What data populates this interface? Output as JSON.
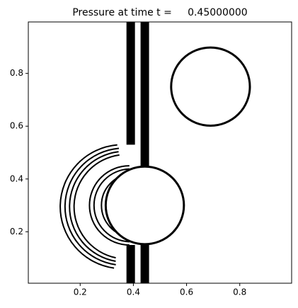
{
  "chart_data": {
    "type": "contour",
    "title": "Pressure at time t =     0.45000000",
    "xlim": [
      0.005,
      0.995
    ],
    "ylim": [
      0.005,
      0.995
    ],
    "xticks": [
      0.2,
      0.4,
      0.6,
      0.8
    ],
    "yticks": [
      0.2,
      0.4,
      0.6,
      0.8
    ],
    "color": "#000000",
    "circles": [
      {
        "cx": 0.69,
        "cy": 0.75,
        "r": 0.148
      },
      {
        "cx": 0.443,
        "cy": 0.3,
        "r": 0.147
      }
    ],
    "bands": [
      {
        "x": 0.39,
        "y0": 0.53,
        "y1": 0.995
      },
      {
        "x": 0.39,
        "y0": 0.005,
        "y1": 0.15
      },
      {
        "x": 0.443,
        "y0": 0.45,
        "y1": 0.995
      },
      {
        "x": 0.443,
        "y0": 0.005,
        "y1": 0.15
      }
    ],
    "arcs": [
      {
        "cx": 0.36,
        "cy": 0.295,
        "r": 0.235,
        "a0": 95,
        "a1": 262
      },
      {
        "cx": 0.365,
        "cy": 0.295,
        "r": 0.222,
        "a0": 95,
        "a1": 262
      },
      {
        "cx": 0.37,
        "cy": 0.295,
        "r": 0.21,
        "a0": 97,
        "a1": 260
      },
      {
        "cx": 0.375,
        "cy": 0.295,
        "r": 0.198,
        "a0": 98,
        "a1": 258
      },
      {
        "cx": 0.385,
        "cy": 0.3,
        "r": 0.15,
        "a0": 90,
        "a1": 270
      },
      {
        "cx": 0.39,
        "cy": 0.3,
        "r": 0.138,
        "a0": 92,
        "a1": 268
      },
      {
        "cx": 0.4,
        "cy": 0.3,
        "r": 0.12,
        "a0": 95,
        "a1": 265
      },
      {
        "cx": 0.42,
        "cy": 0.3,
        "r": 0.11,
        "a0": 80,
        "a1": 280
      }
    ]
  }
}
